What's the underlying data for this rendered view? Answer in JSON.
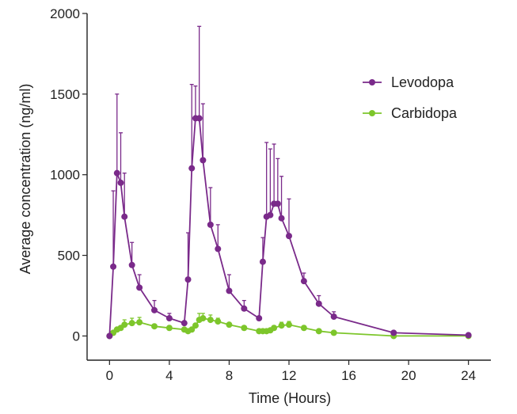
{
  "chart_data": {
    "type": "line",
    "title": "",
    "xlabel": "Time (Hours)",
    "ylabel": "Average concentration (ng/ml)",
    "xlim": [
      -1.5,
      25.5
    ],
    "ylim": [
      -150,
      2000
    ],
    "xticks": [
      0,
      4,
      8,
      12,
      16,
      20,
      24
    ],
    "yticks": [
      0,
      500,
      1000,
      1500,
      2000
    ],
    "legend_position": "top-right",
    "series": [
      {
        "name": "Levodopa",
        "color": "#7a2a8a",
        "points": [
          {
            "x": 0,
            "y": 0,
            "err": 0
          },
          {
            "x": 0.25,
            "y": 430,
            "err": 470
          },
          {
            "x": 0.5,
            "y": 1010,
            "err": 490
          },
          {
            "x": 0.75,
            "y": 950,
            "err": 310
          },
          {
            "x": 1,
            "y": 740,
            "err": 270
          },
          {
            "x": 1.5,
            "y": 440,
            "err": 140
          },
          {
            "x": 2,
            "y": 300,
            "err": 80
          },
          {
            "x": 3,
            "y": 160,
            "err": 60
          },
          {
            "x": 4,
            "y": 110,
            "err": 30
          },
          {
            "x": 5,
            "y": 80,
            "err": 0
          },
          {
            "x": 5.25,
            "y": 350,
            "err": 290
          },
          {
            "x": 5.5,
            "y": 1040,
            "err": 520
          },
          {
            "x": 5.75,
            "y": 1350,
            "err": 200
          },
          {
            "x": 6,
            "y": 1350,
            "err": 570
          },
          {
            "x": 6.25,
            "y": 1090,
            "err": 350
          },
          {
            "x": 6.75,
            "y": 690,
            "err": 230
          },
          {
            "x": 7.25,
            "y": 540,
            "err": 150
          },
          {
            "x": 8,
            "y": 280,
            "err": 100
          },
          {
            "x": 9,
            "y": 170,
            "err": 50
          },
          {
            "x": 10,
            "y": 110,
            "err": 0
          },
          {
            "x": 10.25,
            "y": 460,
            "err": 150
          },
          {
            "x": 10.5,
            "y": 740,
            "err": 460
          },
          {
            "x": 10.75,
            "y": 750,
            "err": 410
          },
          {
            "x": 11,
            "y": 820,
            "err": 370
          },
          {
            "x": 11.25,
            "y": 820,
            "err": 280
          },
          {
            "x": 11.5,
            "y": 730,
            "err": 260
          },
          {
            "x": 12,
            "y": 620,
            "err": 230
          },
          {
            "x": 13,
            "y": 340,
            "err": 50
          },
          {
            "x": 14,
            "y": 200,
            "err": 50
          },
          {
            "x": 15,
            "y": 120,
            "err": 30
          },
          {
            "x": 19,
            "y": 20,
            "err": 0
          },
          {
            "x": 24,
            "y": 5,
            "err": 0
          }
        ]
      },
      {
        "name": "Carbidopa",
        "color": "#7dc62b",
        "points": [
          {
            "x": 0,
            "y": 0,
            "err": 0
          },
          {
            "x": 0.25,
            "y": 20,
            "err": 0
          },
          {
            "x": 0.5,
            "y": 40,
            "err": 0
          },
          {
            "x": 0.75,
            "y": 50,
            "err": 0
          },
          {
            "x": 1,
            "y": 70,
            "err": 30
          },
          {
            "x": 1.5,
            "y": 80,
            "err": 30
          },
          {
            "x": 2,
            "y": 85,
            "err": 30
          },
          {
            "x": 3,
            "y": 60,
            "err": 0
          },
          {
            "x": 4,
            "y": 50,
            "err": 0
          },
          {
            "x": 5,
            "y": 40,
            "err": 0
          },
          {
            "x": 5.25,
            "y": 30,
            "err": 0
          },
          {
            "x": 5.5,
            "y": 40,
            "err": 0
          },
          {
            "x": 5.75,
            "y": 65,
            "err": 0
          },
          {
            "x": 6,
            "y": 100,
            "err": 40
          },
          {
            "x": 6.25,
            "y": 110,
            "err": 30
          },
          {
            "x": 6.75,
            "y": 100,
            "err": 30
          },
          {
            "x": 7.25,
            "y": 90,
            "err": 20
          },
          {
            "x": 8,
            "y": 70,
            "err": 0
          },
          {
            "x": 9,
            "y": 50,
            "err": 0
          },
          {
            "x": 10,
            "y": 30,
            "err": 0
          },
          {
            "x": 10.25,
            "y": 30,
            "err": 0
          },
          {
            "x": 10.5,
            "y": 30,
            "err": 0
          },
          {
            "x": 10.75,
            "y": 35,
            "err": 0
          },
          {
            "x": 11,
            "y": 50,
            "err": 0
          },
          {
            "x": 11.5,
            "y": 65,
            "err": 20
          },
          {
            "x": 12,
            "y": 70,
            "err": 20
          },
          {
            "x": 13,
            "y": 50,
            "err": 0
          },
          {
            "x": 14,
            "y": 30,
            "err": 0
          },
          {
            "x": 15,
            "y": 20,
            "err": 0
          },
          {
            "x": 19,
            "y": 0,
            "err": 0
          },
          {
            "x": 24,
            "y": 0,
            "err": 0
          }
        ]
      }
    ]
  }
}
